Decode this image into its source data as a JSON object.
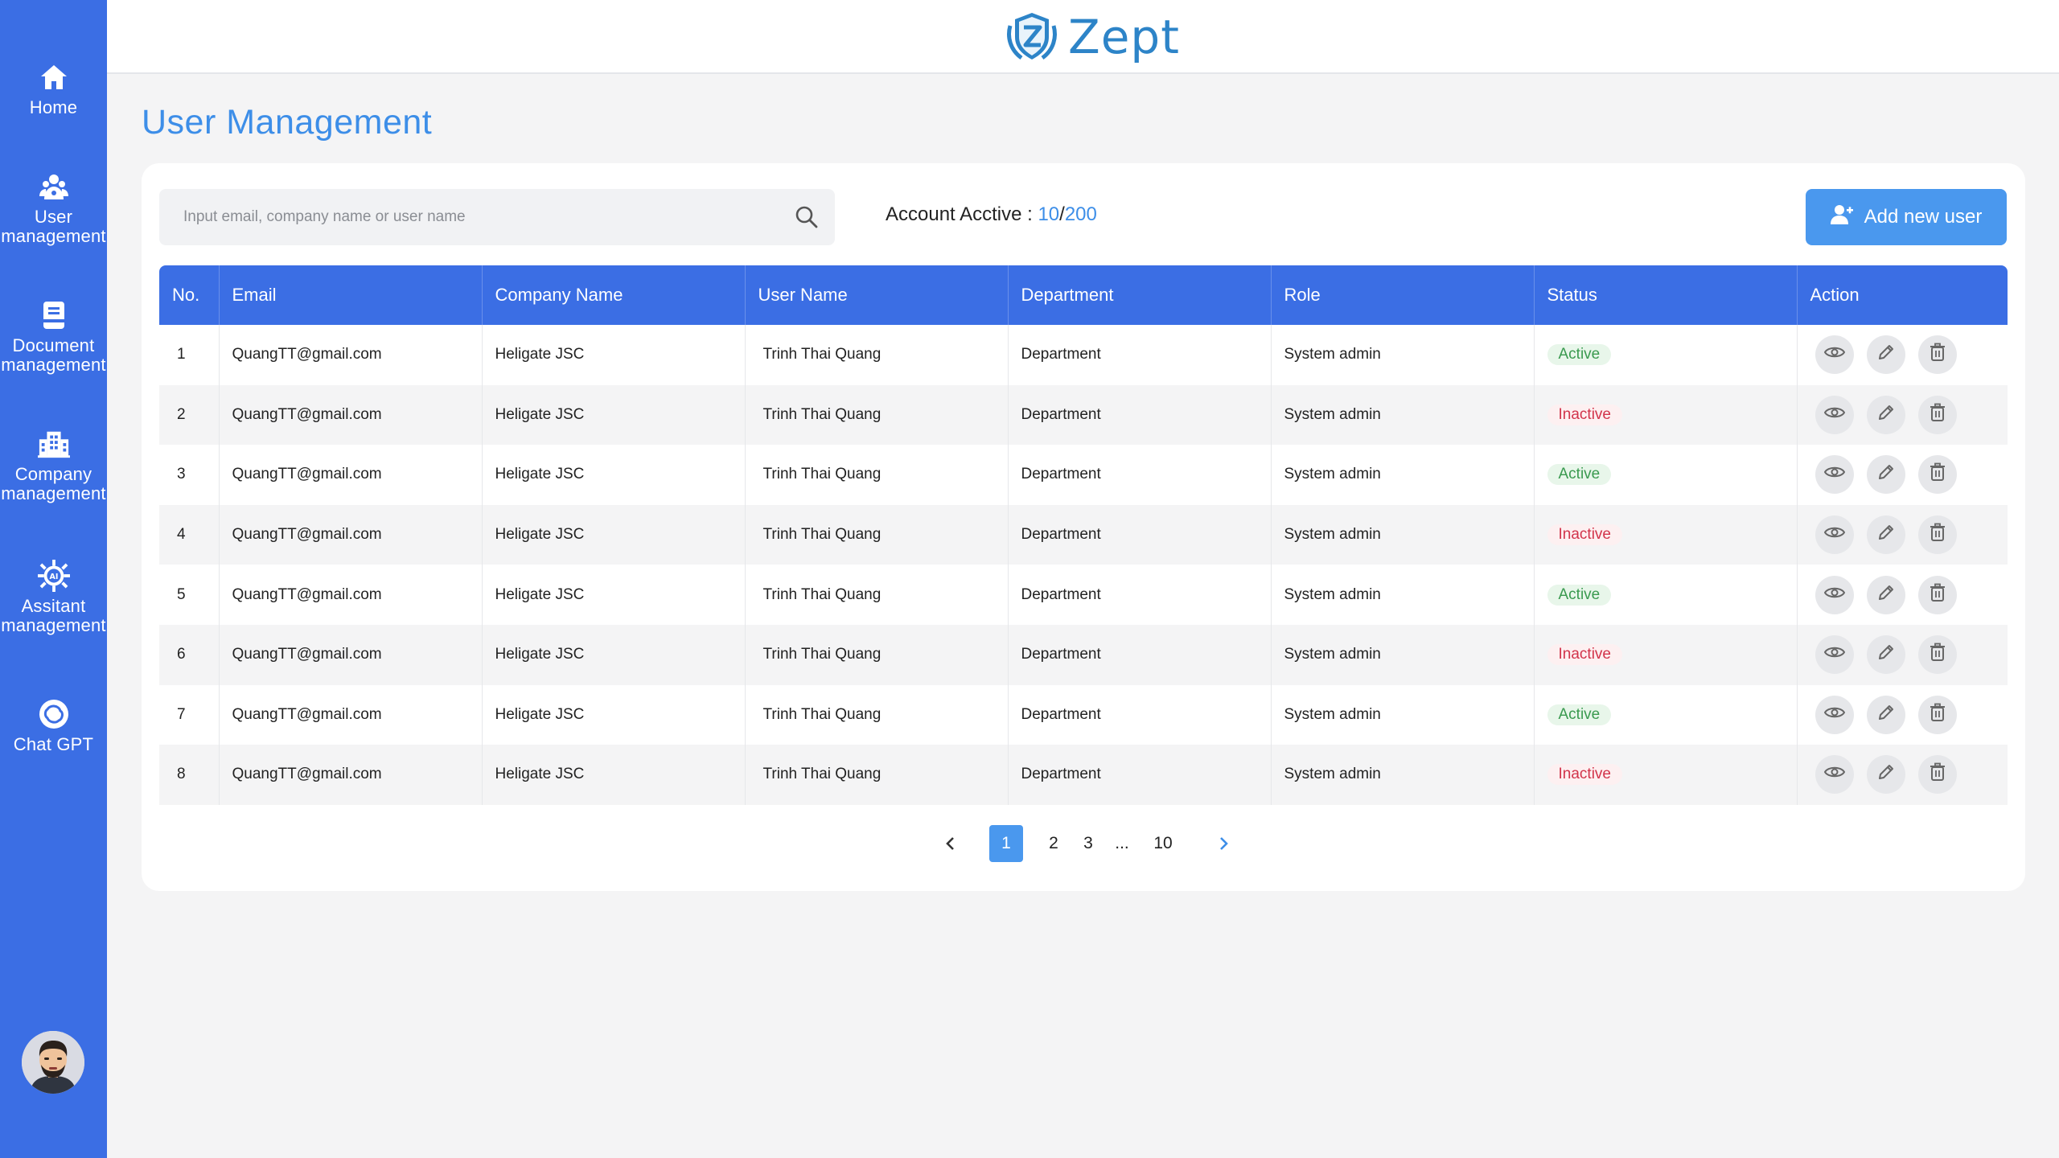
{
  "brand": {
    "name": "Zept"
  },
  "sidebar": {
    "items": [
      {
        "label": "Home"
      },
      {
        "label": "User\nmanagement"
      },
      {
        "label": "Document\nmanagement"
      },
      {
        "label": "Company\nmanagement"
      },
      {
        "label": "Assitant\nmanagement"
      },
      {
        "label": "Chat GPT"
      }
    ]
  },
  "page": {
    "title": "User Management"
  },
  "search": {
    "placeholder": "Input email, company name or user name",
    "value": ""
  },
  "account": {
    "label": "Account Acctive :",
    "active": "10",
    "separator": "/",
    "total": "200"
  },
  "add_button": {
    "label": "Add new user"
  },
  "table": {
    "headers": [
      "No.",
      "Email",
      "Company Name",
      "User Name",
      "Department",
      "Role",
      "Status",
      "Action"
    ],
    "rows": [
      {
        "no": "1",
        "email": "QuangTT@gmail.com",
        "company": "Heligate JSC",
        "user": "Trinh Thai Quang",
        "department": "Department",
        "role": "System admin",
        "status": "Active"
      },
      {
        "no": "2",
        "email": "QuangTT@gmail.com",
        "company": "Heligate JSC",
        "user": "Trinh Thai Quang",
        "department": "Department",
        "role": "System admin",
        "status": "Inactive"
      },
      {
        "no": "3",
        "email": "QuangTT@gmail.com",
        "company": "Heligate JSC",
        "user": "Trinh Thai Quang",
        "department": "Department",
        "role": "System admin",
        "status": "Active"
      },
      {
        "no": "4",
        "email": "QuangTT@gmail.com",
        "company": "Heligate JSC",
        "user": "Trinh Thai Quang",
        "department": "Department",
        "role": "System admin",
        "status": "Inactive"
      },
      {
        "no": "5",
        "email": "QuangTT@gmail.com",
        "company": "Heligate JSC",
        "user": "Trinh Thai Quang",
        "department": "Department",
        "role": "System admin",
        "status": "Active"
      },
      {
        "no": "6",
        "email": "QuangTT@gmail.com",
        "company": "Heligate JSC",
        "user": "Trinh Thai Quang",
        "department": "Department",
        "role": "System admin",
        "status": "Inactive"
      },
      {
        "no": "7",
        "email": "QuangTT@gmail.com",
        "company": "Heligate JSC",
        "user": "Trinh Thai Quang",
        "department": "Department",
        "role": "System admin",
        "status": "Active"
      },
      {
        "no": "8",
        "email": "QuangTT@gmail.com",
        "company": "Heligate JSC",
        "user": "Trinh Thai Quang",
        "department": "Department",
        "role": "System admin",
        "status": "Inactive"
      }
    ]
  },
  "pagination": {
    "pages": [
      "1",
      "2",
      "3",
      "...",
      "10"
    ],
    "current": "1"
  },
  "colors": {
    "sidebar": "#3b6ee4",
    "accent": "#4a98ee",
    "title": "#3d8ee8",
    "active": "#3a9a4f",
    "inactive": "#d2344b"
  },
  "icons": {
    "sidebar": [
      "home-icon",
      "user-management-icon",
      "document-icon",
      "company-icon",
      "assistant-ai-icon",
      "chat-gpt-icon"
    ],
    "actions": [
      "eye-icon",
      "pencil-icon",
      "trash-icon"
    ],
    "search": "search-icon",
    "add": "add-user-icon"
  }
}
